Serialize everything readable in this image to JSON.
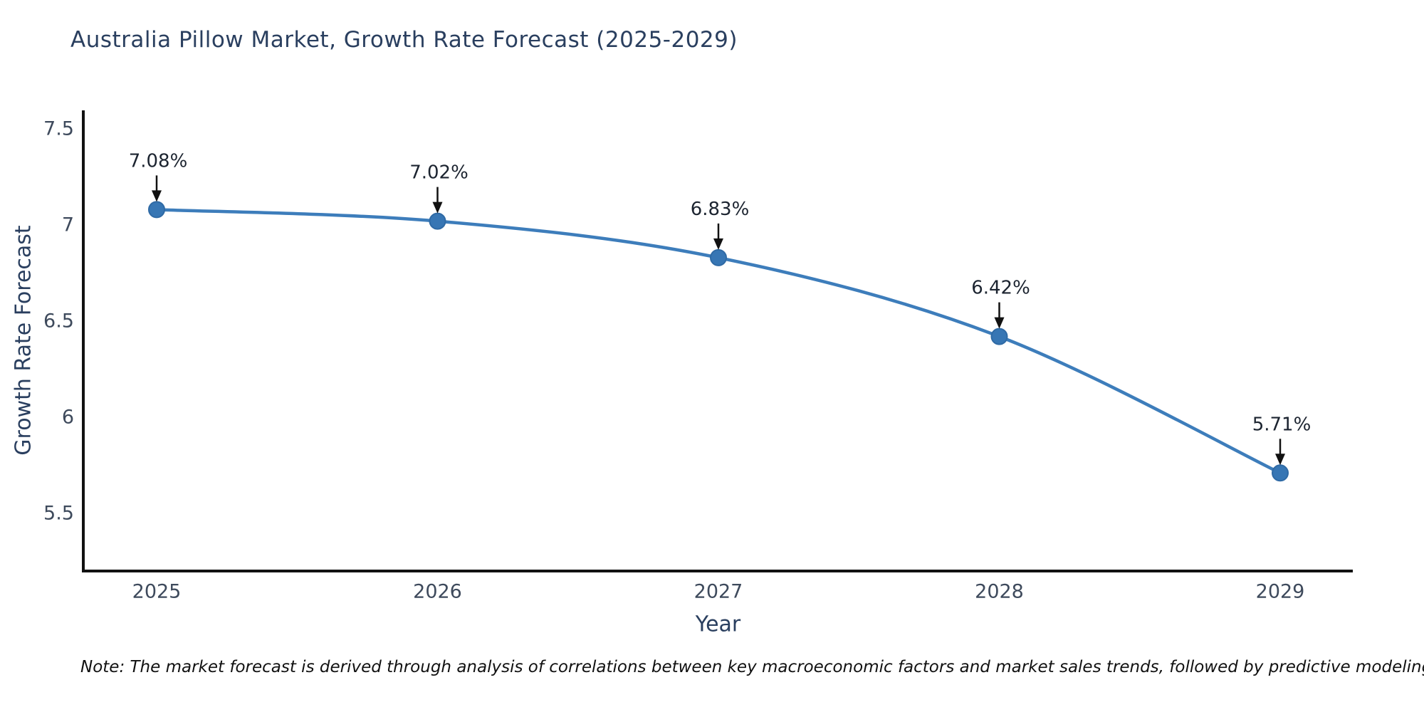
{
  "title": "Australia Pillow Market, Growth Rate Forecast (2025-2029)",
  "note": "Note: The market forecast is derived through analysis of correlations between key macroeconomic factors and market sales trends, followed by predictive modeling to project future sales",
  "chart_data": {
    "type": "line",
    "title": "Australia Pillow Market, Growth Rate Forecast (2025-2029)",
    "xlabel": "Year",
    "ylabel": "Growth Rate Forecast",
    "x": [
      2025,
      2026,
      2027,
      2028,
      2029
    ],
    "x_tick_labels": [
      "2025",
      "2026",
      "2027",
      "2028",
      "2029"
    ],
    "series": [
      {
        "name": "Growth Rate Forecast",
        "values": [
          7.08,
          7.02,
          6.83,
          6.42,
          5.71
        ],
        "point_labels": [
          "7.08%",
          "7.02%",
          "6.83%",
          "6.42%",
          "5.71%"
        ]
      }
    ],
    "y_ticks": [
      7.5,
      7,
      6.5,
      6,
      5.5
    ],
    "y_tick_labels": [
      "7.5",
      "7",
      "6.5",
      "6",
      "5.5"
    ],
    "ylim": [
      5.2,
      7.6
    ],
    "line_shape": "spline",
    "grid": false,
    "legend_position": "none",
    "colors": {
      "line": "#3d7dbb",
      "marker_fill": "#3776b4",
      "marker_edge": "#2f6aa5",
      "axis_line": "#111111",
      "title_text": "#2a3f5f",
      "axis_title_text": "#2a3f5f",
      "tick_text": "#3e4a5c",
      "annotation_text": "#1c2430",
      "annotation_arrow": "#111111",
      "note_text": "#111111",
      "background": "#ffffff"
    }
  }
}
